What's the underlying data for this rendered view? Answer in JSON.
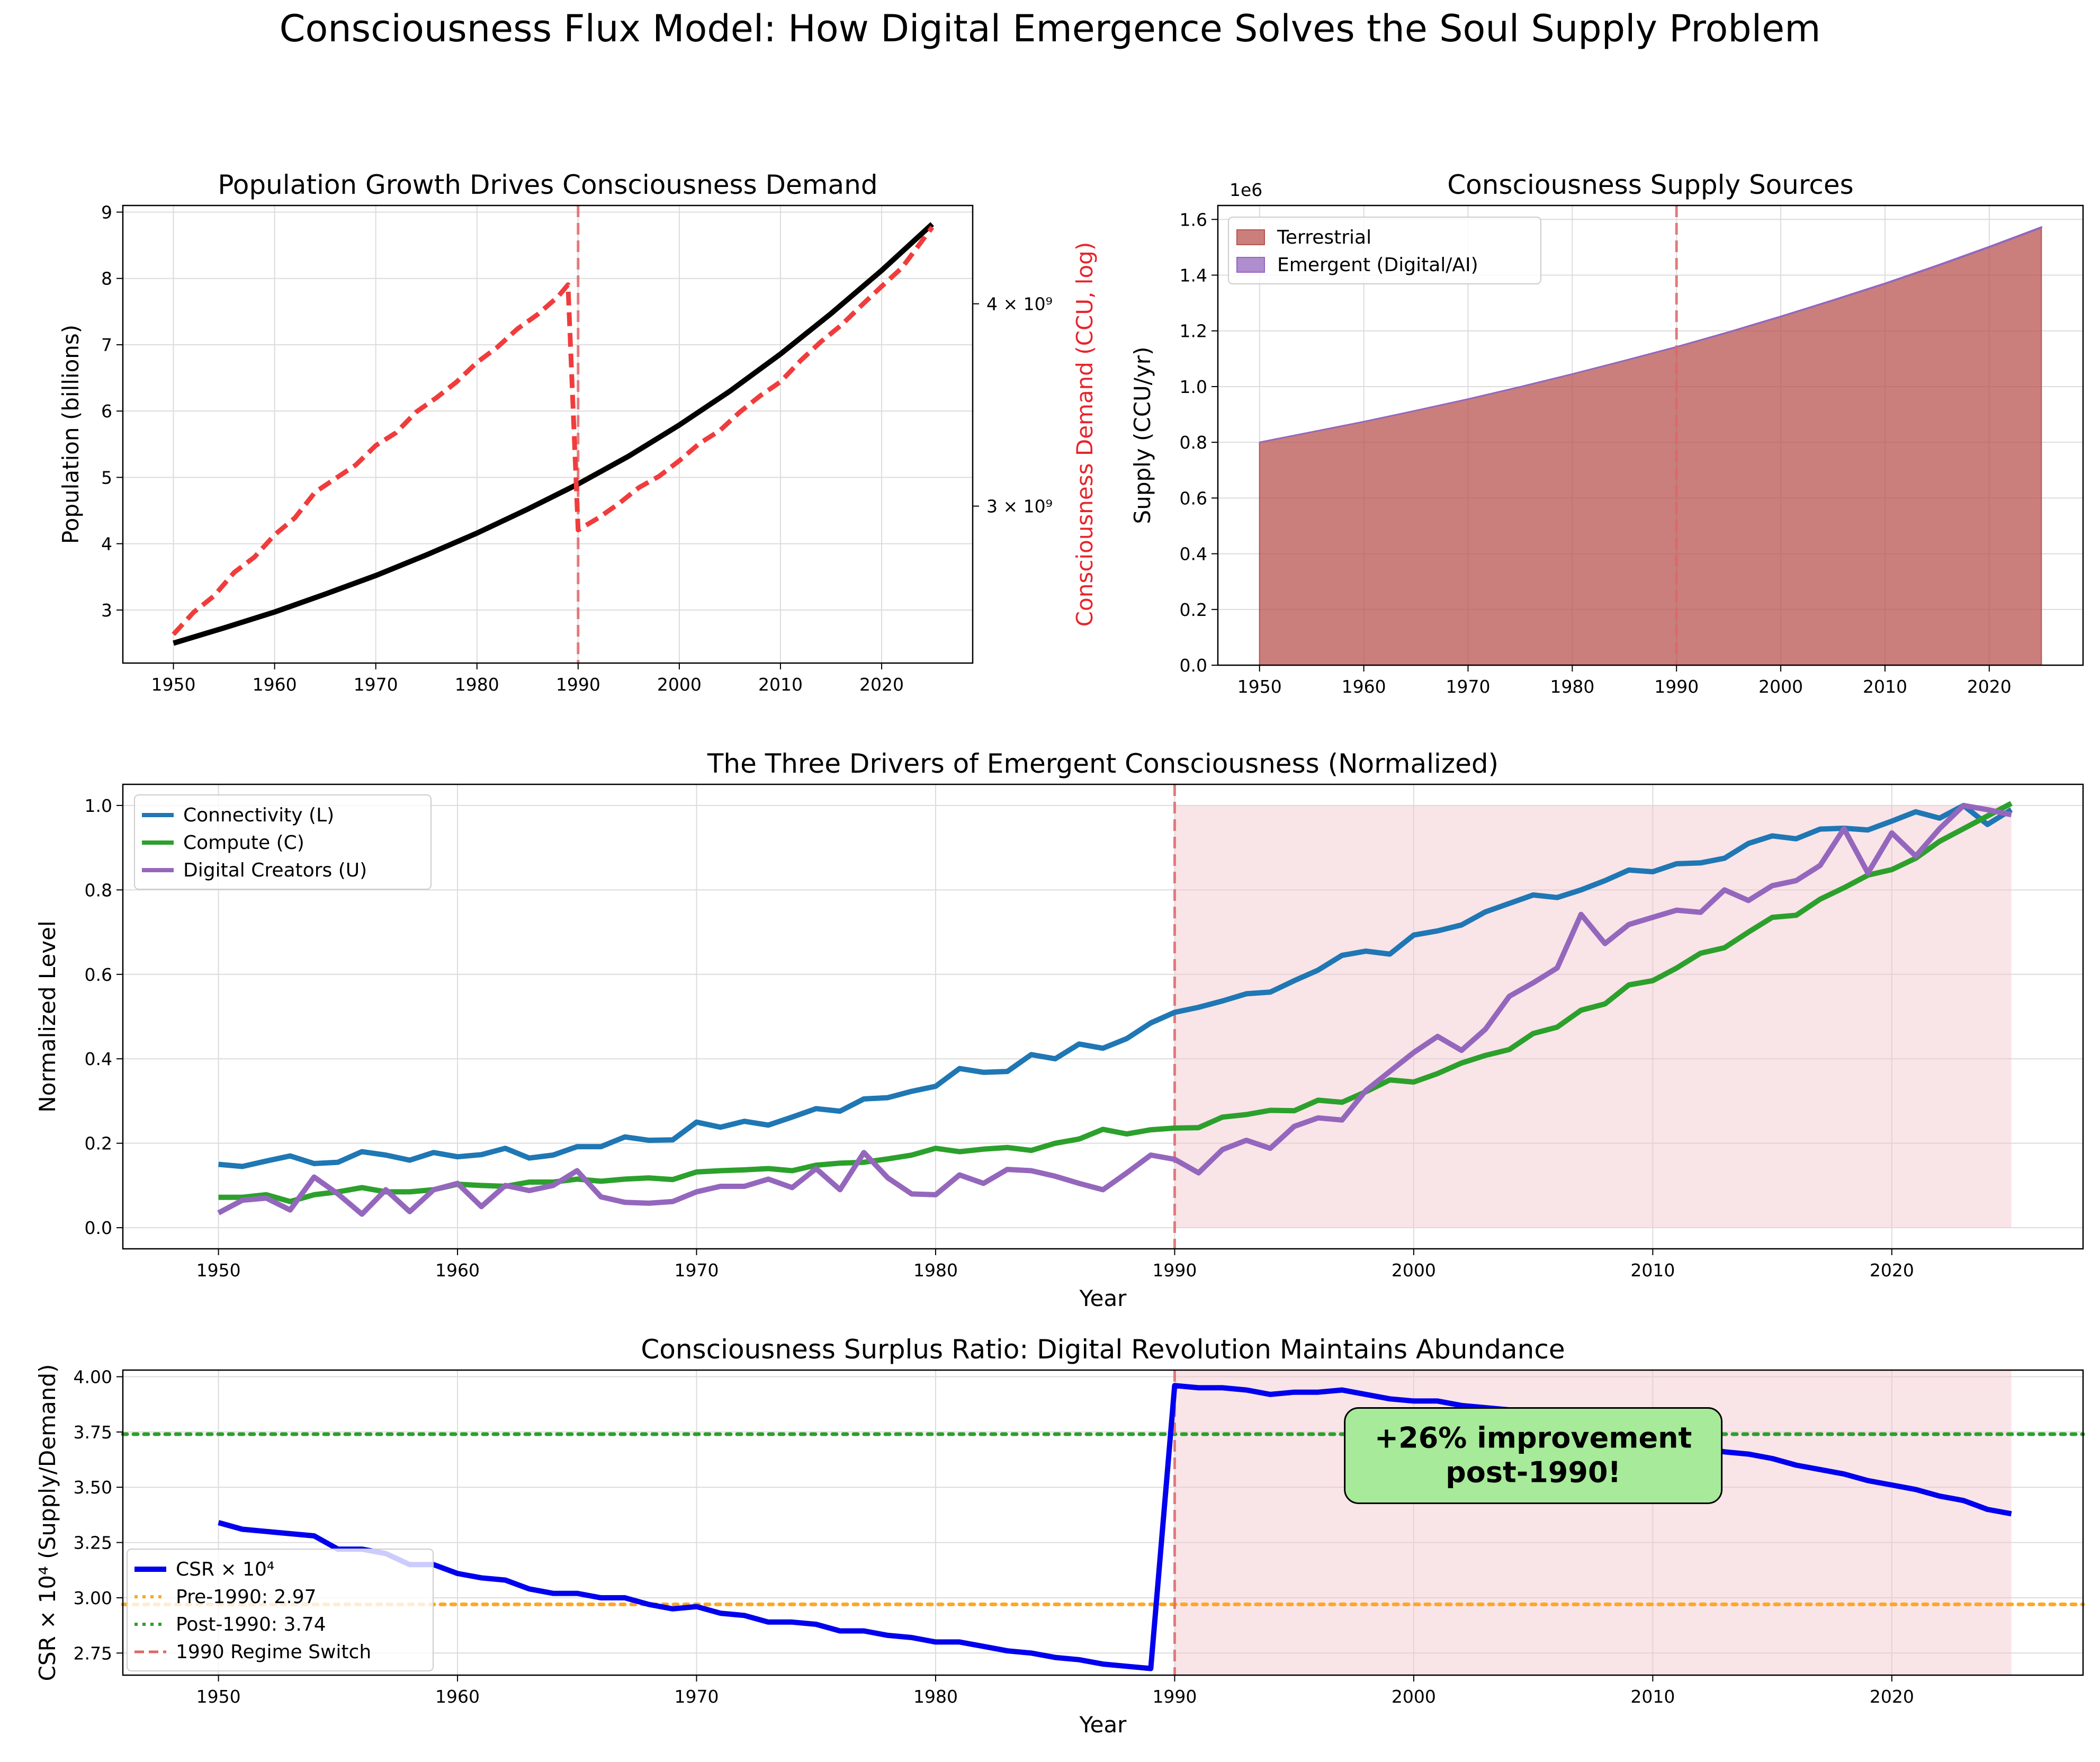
{
  "figure": {
    "suptitle": "Consciousness Flux Model: How Digital Emergence Solves the Soul Supply Problem"
  },
  "chart_data": [
    {
      "id": "population",
      "type": "line",
      "title": "Population Growth Drives Consciousness Demand",
      "xlabel": "",
      "ylabel": "Population (billions)",
      "ylabel_right": "Consciousness Demand (CCU, log)",
      "ylabel_right_color": "#e8242b",
      "xlim": [
        1945,
        2029
      ],
      "ylim": [
        2.2,
        9.1
      ],
      "xticks": [
        1950,
        1960,
        1970,
        1980,
        1990,
        2000,
        2010,
        2020
      ],
      "yticks": [
        3,
        4,
        5,
        6,
        7,
        8,
        9
      ],
      "right_scale": "log",
      "right_ylim": [
        2400000000,
        4600000000
      ],
      "right_ticks": [
        {
          "value": 3000000000,
          "label": "3 × 10⁹"
        },
        {
          "value": 4000000000,
          "label": "4 × 10⁹"
        }
      ],
      "vline": 1990,
      "grid": true,
      "series": [
        {
          "axis": "left",
          "color": "#000000",
          "style": "solid",
          "x": [
            1950,
            1955,
            1960,
            1965,
            1970,
            1975,
            1980,
            1985,
            1990,
            1995,
            2000,
            2005,
            2010,
            2015,
            2020,
            2025
          ],
          "y": [
            2.5,
            2.73,
            2.97,
            3.24,
            3.52,
            3.83,
            4.16,
            4.52,
            4.9,
            5.32,
            5.79,
            6.3,
            6.86,
            7.47,
            8.12,
            8.82
          ]
        },
        {
          "axis": "right",
          "color": "#f03c3c",
          "style": "dashed",
          "x": [
            1950,
            1952,
            1954,
            1956,
            1958,
            1960,
            1962,
            1964,
            1966,
            1968,
            1970,
            1972,
            1974,
            1976,
            1978,
            1980,
            1982,
            1984,
            1986,
            1988,
            1989,
            1990,
            1992,
            1994,
            1996,
            1998,
            2000,
            2002,
            2004,
            2006,
            2008,
            2010,
            2012,
            2014,
            2016,
            2018,
            2020,
            2022,
            2025
          ],
          "y": [
            2500000000,
            2580000000,
            2640000000,
            2730000000,
            2790000000,
            2880000000,
            2950000000,
            3060000000,
            3120000000,
            3180000000,
            3270000000,
            3330000000,
            3430000000,
            3500000000,
            3580000000,
            3680000000,
            3760000000,
            3860000000,
            3940000000,
            4040000000,
            4110000000,
            2900000000,
            2950000000,
            3010000000,
            3080000000,
            3130000000,
            3200000000,
            3280000000,
            3340000000,
            3430000000,
            3510000000,
            3580000000,
            3690000000,
            3790000000,
            3880000000,
            3990000000,
            4100000000,
            4210000000,
            4460000000
          ]
        }
      ]
    },
    {
      "id": "supply",
      "type": "area",
      "title": "Consciousness Supply Sources",
      "xlabel": "",
      "ylabel": "Supply (CCU/yr)",
      "scale_note": "1e6",
      "xlim": [
        1946,
        2029
      ],
      "ylim": [
        0,
        1.65
      ],
      "xticks": [
        1950,
        1960,
        1970,
        1980,
        1990,
        2000,
        2010,
        2020
      ],
      "yticks": [
        0.0,
        0.2,
        0.4,
        0.6,
        0.8,
        1.0,
        1.2,
        1.4,
        1.6
      ],
      "vline": 1990,
      "grid": true,
      "legend": "top-left",
      "x": [
        1950,
        1955,
        1960,
        1965,
        1970,
        1975,
        1980,
        1985,
        1990,
        1995,
        2000,
        2005,
        2010,
        2015,
        2020,
        2025
      ],
      "series": [
        {
          "name": "Terrestrial",
          "color": "#b85450",
          "values": [
            0.8,
            0.837,
            0.874,
            0.914,
            0.955,
            0.999,
            1.045,
            1.093,
            1.142,
            1.195,
            1.251,
            1.309,
            1.369,
            1.433,
            1.5,
            1.57
          ]
        },
        {
          "name": "Emergent (Digital/AI)",
          "color": "#9467bd",
          "values": [
            0,
            0,
            0,
            0,
            0,
            0,
            0,
            0,
            0.0005,
            0.0008,
            0.001,
            0.0013,
            0.0016,
            0.0019,
            0.0022,
            0.0025
          ]
        }
      ]
    },
    {
      "id": "drivers",
      "type": "line",
      "title": "The Three Drivers of Emergent Consciousness (Normalized)",
      "xlabel": "Year",
      "ylabel": "Normalized Level",
      "xlim": [
        1946,
        2028
      ],
      "ylim": [
        -0.05,
        1.05
      ],
      "xticks": [
        1950,
        1960,
        1970,
        1980,
        1990,
        2000,
        2010,
        2020
      ],
      "yticks": [
        0.0,
        0.2,
        0.4,
        0.6,
        0.8,
        1.0
      ],
      "vline": 1990,
      "shade": [
        1990,
        2025
      ],
      "shade_top": 1.0,
      "grid": true,
      "legend": "top-left",
      "x": [
        1950,
        1951,
        1952,
        1953,
        1954,
        1955,
        1956,
        1957,
        1958,
        1959,
        1960,
        1961,
        1962,
        1963,
        1964,
        1965,
        1966,
        1967,
        1968,
        1969,
        1970,
        1971,
        1972,
        1973,
        1974,
        1975,
        1976,
        1977,
        1978,
        1979,
        1980,
        1981,
        1982,
        1983,
        1984,
        1985,
        1986,
        1987,
        1988,
        1989,
        1990,
        1991,
        1992,
        1993,
        1994,
        1995,
        1996,
        1997,
        1998,
        1999,
        2000,
        2001,
        2002,
        2003,
        2004,
        2005,
        2006,
        2007,
        2008,
        2009,
        2010,
        2011,
        2012,
        2013,
        2014,
        2015,
        2016,
        2017,
        2018,
        2019,
        2020,
        2021,
        2022,
        2023,
        2024,
        2025
      ],
      "series": [
        {
          "name": "Connectivity (L)",
          "color": "#1f77b4",
          "values": [
            0.15,
            0.145,
            0.158,
            0.17,
            0.152,
            0.155,
            0.18,
            0.172,
            0.16,
            0.178,
            0.168,
            0.173,
            0.188,
            0.165,
            0.172,
            0.192,
            0.192,
            0.215,
            0.207,
            0.208,
            0.25,
            0.238,
            0.252,
            0.243,
            0.262,
            0.282,
            0.276,
            0.305,
            0.308,
            0.323,
            0.335,
            0.377,
            0.368,
            0.37,
            0.41,
            0.4,
            0.435,
            0.425,
            0.448,
            0.485,
            0.51,
            0.522,
            0.537,
            0.554,
            0.558,
            0.585,
            0.61,
            0.645,
            0.655,
            0.648,
            0.693,
            0.703,
            0.717,
            0.748,
            0.768,
            0.788,
            0.782,
            0.8,
            0.822,
            0.847,
            0.843,
            0.862,
            0.864,
            0.875,
            0.91,
            0.928,
            0.921,
            0.944,
            0.946,
            0.942,
            0.963,
            0.985,
            0.97,
            1.0,
            0.955,
            0.99
          ]
        },
        {
          "name": "Compute (C)",
          "color": "#2ca02c",
          "values": [
            0.072,
            0.072,
            0.078,
            0.062,
            0.078,
            0.085,
            0.095,
            0.085,
            0.085,
            0.09,
            0.103,
            0.1,
            0.098,
            0.108,
            0.108,
            0.115,
            0.11,
            0.115,
            0.118,
            0.114,
            0.132,
            0.135,
            0.137,
            0.14,
            0.135,
            0.148,
            0.153,
            0.155,
            0.163,
            0.172,
            0.188,
            0.18,
            0.186,
            0.19,
            0.183,
            0.2,
            0.21,
            0.233,
            0.222,
            0.232,
            0.236,
            0.237,
            0.262,
            0.268,
            0.278,
            0.277,
            0.302,
            0.297,
            0.322,
            0.35,
            0.345,
            0.365,
            0.39,
            0.408,
            0.422,
            0.46,
            0.475,
            0.515,
            0.53,
            0.575,
            0.585,
            0.615,
            0.65,
            0.663,
            0.7,
            0.735,
            0.74,
            0.778,
            0.805,
            0.835,
            0.848,
            0.875,
            0.915,
            0.945,
            0.975,
            1.005
          ]
        },
        {
          "name": "Digital Creators (U)",
          "color": "#9467bd",
          "values": [
            0.035,
            0.065,
            0.07,
            0.042,
            0.12,
            0.08,
            0.032,
            0.09,
            0.038,
            0.09,
            0.105,
            0.05,
            0.1,
            0.088,
            0.1,
            0.135,
            0.073,
            0.06,
            0.058,
            0.062,
            0.085,
            0.098,
            0.098,
            0.115,
            0.095,
            0.14,
            0.09,
            0.178,
            0.118,
            0.08,
            0.078,
            0.125,
            0.105,
            0.138,
            0.135,
            0.122,
            0.105,
            0.09,
            0.13,
            0.172,
            0.162,
            0.13,
            0.185,
            0.207,
            0.188,
            0.24,
            0.26,
            0.255,
            0.325,
            0.37,
            0.415,
            0.453,
            0.42,
            0.47,
            0.548,
            0.58,
            0.615,
            0.742,
            0.673,
            0.718,
            0.735,
            0.752,
            0.747,
            0.8,
            0.775,
            0.81,
            0.822,
            0.858,
            0.945,
            0.84,
            0.935,
            0.88,
            0.945,
            1.0,
            0.99,
            0.978
          ]
        }
      ]
    },
    {
      "id": "csr",
      "type": "line",
      "title": "Consciousness Surplus Ratio: Digital Revolution Maintains Abundance",
      "xlabel": "Year",
      "ylabel": "CSR × 10⁴ (Supply/Demand)",
      "xlim": [
        1946,
        2028
      ],
      "ylim": [
        2.65,
        4.03
      ],
      "xticks": [
        1950,
        1960,
        1970,
        1980,
        1990,
        2000,
        2010,
        2020
      ],
      "yticks": [
        2.75,
        3.0,
        3.25,
        3.5,
        3.75,
        4.0
      ],
      "shade": [
        1990,
        2025
      ],
      "grid": true,
      "legend": "bottom-left",
      "annotation": {
        "text_line1": "+26% improvement",
        "text_line2": "post-1990!",
        "x": 2005,
        "y": 3.6
      },
      "hlines": [
        {
          "name": "Pre-1990: 2.97",
          "value": 2.97,
          "color": "#ffa726",
          "style": "dotted"
        },
        {
          "name": "Post-1990: 3.74",
          "value": 3.74,
          "color": "#2ca02c",
          "style": "dotted"
        }
      ],
      "vline_name": "1990 Regime Switch",
      "vline": 1990,
      "series": [
        {
          "name": "CSR × 10⁴",
          "color": "#0000ee",
          "x": [
            1950,
            1951,
            1952,
            1953,
            1954,
            1955,
            1956,
            1957,
            1958,
            1959,
            1960,
            1961,
            1962,
            1963,
            1964,
            1965,
            1966,
            1967,
            1968,
            1969,
            1970,
            1971,
            1972,
            1973,
            1974,
            1975,
            1976,
            1977,
            1978,
            1979,
            1980,
            1981,
            1982,
            1983,
            1984,
            1985,
            1986,
            1987,
            1988,
            1989,
            1990,
            1991,
            1992,
            1993,
            1994,
            1995,
            1996,
            1997,
            1998,
            1999,
            2000,
            2001,
            2002,
            2003,
            2004,
            2005,
            2006,
            2007,
            2008,
            2009,
            2010,
            2011,
            2012,
            2013,
            2014,
            2015,
            2016,
            2017,
            2018,
            2019,
            2020,
            2021,
            2022,
            2023,
            2024,
            2025
          ],
          "values": [
            3.34,
            3.31,
            3.3,
            3.29,
            3.28,
            3.22,
            3.22,
            3.2,
            3.15,
            3.15,
            3.11,
            3.09,
            3.08,
            3.04,
            3.02,
            3.02,
            3.0,
            3.0,
            2.97,
            2.95,
            2.96,
            2.93,
            2.92,
            2.89,
            2.89,
            2.88,
            2.85,
            2.85,
            2.83,
            2.82,
            2.8,
            2.8,
            2.78,
            2.76,
            2.75,
            2.73,
            2.72,
            2.7,
            2.69,
            2.68,
            3.96,
            3.95,
            3.95,
            3.94,
            3.92,
            3.93,
            3.93,
            3.94,
            3.92,
            3.9,
            3.89,
            3.89,
            3.87,
            3.86,
            3.85,
            3.83,
            3.81,
            3.79,
            3.76,
            3.73,
            3.72,
            3.7,
            3.68,
            3.66,
            3.65,
            3.63,
            3.6,
            3.58,
            3.56,
            3.53,
            3.51,
            3.49,
            3.46,
            3.44,
            3.4,
            3.38
          ]
        }
      ]
    }
  ]
}
